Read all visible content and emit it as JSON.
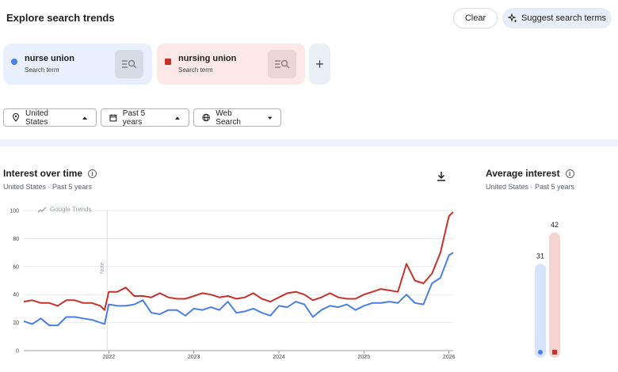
{
  "header": {
    "title": "Explore search trends",
    "clear_label": "Clear",
    "suggest_label": "Suggest search terms"
  },
  "terms": [
    {
      "name": "nurse union",
      "type": "Search term",
      "color": "#4a7eea"
    },
    {
      "name": "nursing union",
      "type": "Search term",
      "color": "#c5332b"
    }
  ],
  "add_term_icon": "plus-icon",
  "filters": {
    "geo": "United States",
    "time": "Past 5 years",
    "property": "Web Search"
  },
  "interest_over_time": {
    "title": "Interest over time",
    "subtitle": "United States · Past 5 years",
    "watermark": "Google Trends",
    "note_label": "Note"
  },
  "average_interest": {
    "title": "Average interest",
    "subtitle": "United States · Past 5 years",
    "values": [
      31,
      42
    ]
  },
  "chart_data": {
    "type": "line",
    "y_ticks": [
      "100",
      "80",
      "60",
      "40",
      "20",
      "0"
    ],
    "x_ticks": [
      "2022",
      "2023",
      "2024",
      "2025",
      "2026"
    ],
    "ylim": [
      0,
      100
    ],
    "xlim": [
      2021.0,
      2026.05
    ],
    "grid": true,
    "note_marker_x": 2021.98,
    "series": [
      {
        "name": "nurse union",
        "color": "#4a7eea",
        "x": [
          2021.0,
          2021.1,
          2021.2,
          2021.3,
          2021.4,
          2021.5,
          2021.6,
          2021.7,
          2021.8,
          2021.9,
          2021.95,
          2022.0,
          2022.1,
          2022.2,
          2022.3,
          2022.4,
          2022.5,
          2022.6,
          2022.7,
          2022.8,
          2022.9,
          2023.0,
          2023.1,
          2023.2,
          2023.3,
          2023.4,
          2023.5,
          2023.6,
          2023.7,
          2023.8,
          2023.9,
          2024.0,
          2024.1,
          2024.2,
          2024.3,
          2024.4,
          2024.5,
          2024.6,
          2024.7,
          2024.8,
          2024.9,
          2025.0,
          2025.1,
          2025.2,
          2025.3,
          2025.4,
          2025.5,
          2025.6,
          2025.7,
          2025.8,
          2025.9,
          2026.0,
          2026.05
        ],
        "y": [
          21,
          19,
          23,
          18,
          18,
          24,
          24,
          23,
          22,
          20,
          19,
          33,
          32,
          32,
          33,
          36,
          27,
          26,
          29,
          29,
          25,
          30,
          29,
          31,
          29,
          35,
          27,
          28,
          30,
          27,
          25,
          32,
          31,
          35,
          33,
          24,
          29,
          32,
          31,
          33,
          29,
          32,
          34,
          34,
          35,
          34,
          40,
          34,
          33,
          48,
          52,
          68,
          70
        ]
      },
      {
        "name": "nursing union",
        "color": "#c5332b",
        "x": [
          2021.0,
          2021.1,
          2021.2,
          2021.3,
          2021.4,
          2021.5,
          2021.6,
          2021.7,
          2021.8,
          2021.9,
          2021.95,
          2022.0,
          2022.1,
          2022.2,
          2022.3,
          2022.4,
          2022.5,
          2022.6,
          2022.7,
          2022.8,
          2022.9,
          2023.0,
          2023.1,
          2023.2,
          2023.3,
          2023.4,
          2023.5,
          2023.6,
          2023.7,
          2023.8,
          2023.9,
          2024.0,
          2024.1,
          2024.2,
          2024.3,
          2024.4,
          2024.5,
          2024.6,
          2024.7,
          2024.8,
          2024.9,
          2025.0,
          2025.1,
          2025.2,
          2025.3,
          2025.4,
          2025.5,
          2025.6,
          2025.7,
          2025.8,
          2025.9,
          2026.0,
          2026.05
        ],
        "y": [
          35,
          36,
          34,
          34,
          32,
          36,
          36,
          34,
          34,
          32,
          29,
          42,
          42,
          45,
          39,
          39,
          38,
          41,
          38,
          37,
          37,
          39,
          41,
          40,
          38,
          39,
          37,
          38,
          41,
          37,
          35,
          38,
          41,
          42,
          40,
          36,
          38,
          41,
          38,
          37,
          37,
          40,
          42,
          44,
          43,
          42,
          62,
          50,
          48,
          55,
          70,
          96,
          99
        ]
      }
    ]
  }
}
